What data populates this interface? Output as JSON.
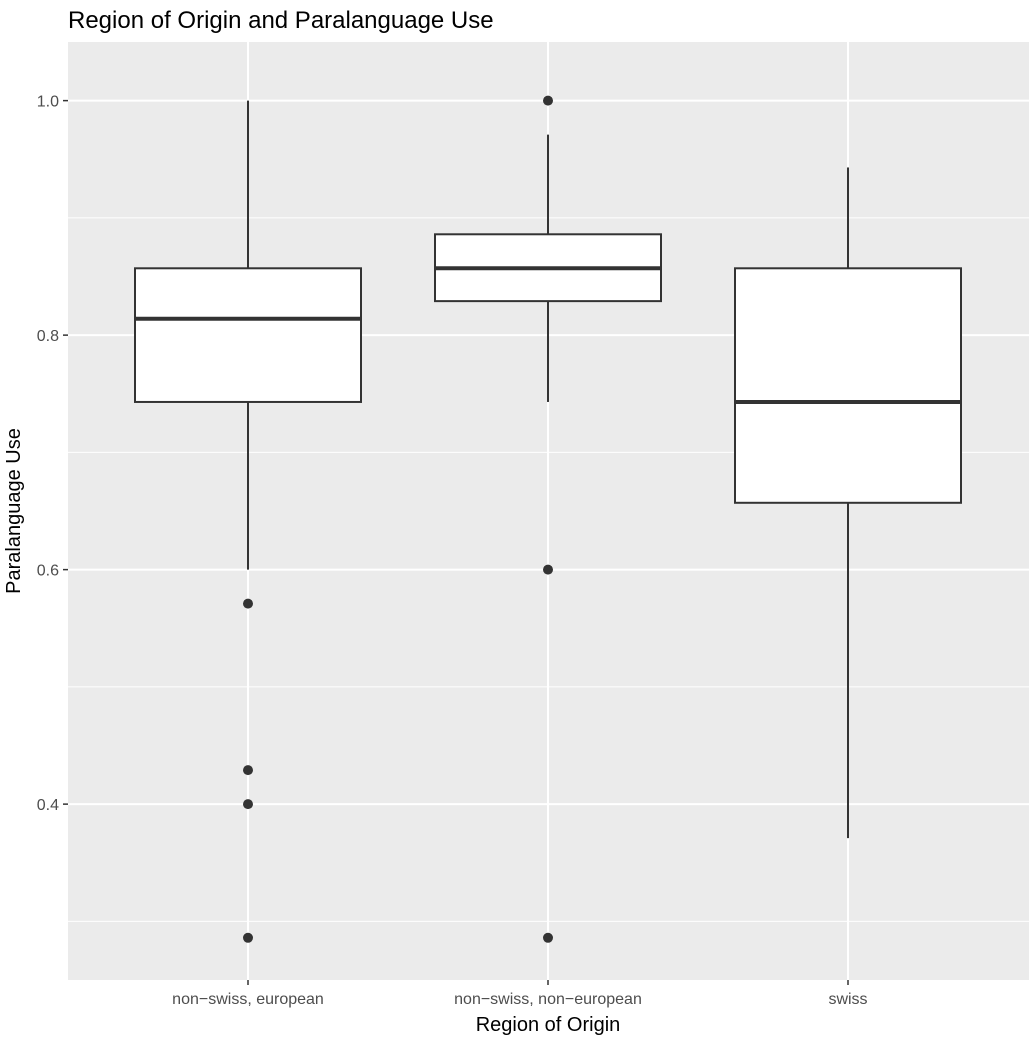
{
  "chart_data": {
    "type": "boxplot",
    "title": "Region of Origin and Paralanguage Use",
    "xlabel": "Region of Origin",
    "ylabel": "Paralanguage Use",
    "ylim": [
      0.25,
      1.05
    ],
    "yticks": [
      0.4,
      0.6,
      0.8,
      1.0
    ],
    "ytick_labels": [
      "0.4",
      "0.6",
      "0.8",
      "1.0"
    ],
    "y_minor_ticks": [
      0.3,
      0.5,
      0.7,
      0.9
    ],
    "grid": true,
    "legend": "none",
    "colors": {
      "panel": "#ebebeb",
      "grid": "#ffffff",
      "box_fill": "#ffffff",
      "box_line": "#333333",
      "point": "#333333"
    },
    "categories": [
      "non−swiss, european",
      "non−swiss, non−european",
      "swiss"
    ],
    "boxes": [
      {
        "lower_whisker": 0.6,
        "q1": 0.743,
        "median": 0.814,
        "q3": 0.857,
        "upper_whisker": 1.0,
        "outliers": [
          0.571,
          0.429,
          0.4,
          0.286
        ]
      },
      {
        "lower_whisker": 0.743,
        "q1": 0.829,
        "median": 0.857,
        "q3": 0.886,
        "upper_whisker": 0.971,
        "outliers": [
          1.0,
          0.6,
          0.286
        ]
      },
      {
        "lower_whisker": 0.371,
        "q1": 0.657,
        "median": 0.743,
        "q3": 0.857,
        "upper_whisker": 0.943,
        "outliers": []
      }
    ]
  }
}
